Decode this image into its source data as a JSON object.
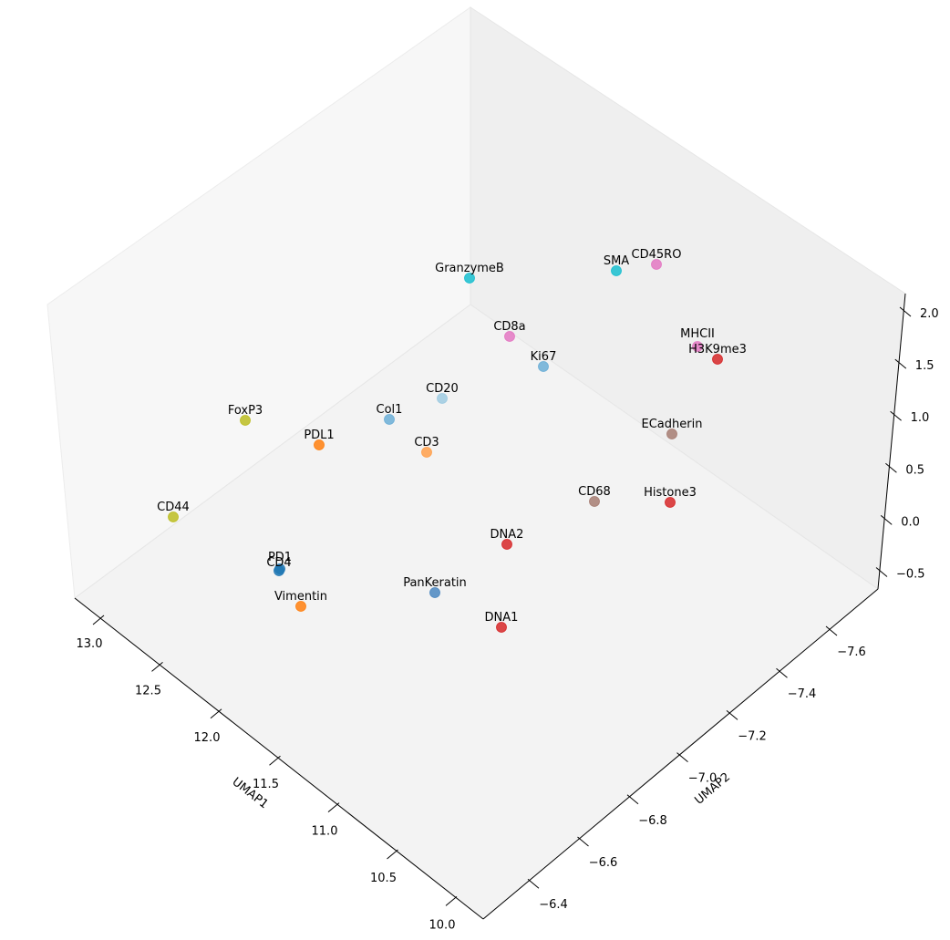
{
  "chart_data": {
    "type": "scatter",
    "projection": "3d",
    "xlabel": "UMAP1",
    "ylabel": "UMAP2",
    "zlabel": "",
    "xlim": [
      10.0,
      13.0
    ],
    "ylim": [
      -6.4,
      -7.6
    ],
    "zlim": [
      -0.5,
      2.0
    ],
    "x_ticks": [
      "13.0",
      "12.5",
      "12.0",
      "11.5",
      "11.0",
      "10.5",
      "10.0"
    ],
    "y_ticks": [
      "−7.6",
      "−7.4",
      "−7.2",
      "−7.0",
      "−6.8",
      "−6.6",
      "−6.4"
    ],
    "z_ticks": [
      "2.0",
      "1.5",
      "1.0",
      "0.5",
      "0.0",
      "−0.5"
    ],
    "grid": false,
    "points": [
      {
        "label": "GranzymeB",
        "color": "#17becf"
      },
      {
        "label": "SMA",
        "color": "#17becf"
      },
      {
        "label": "CD45RO",
        "color": "#e377c2"
      },
      {
        "label": "CD8a",
        "color": "#e377c2"
      },
      {
        "label": "MHCII",
        "color": "#e377c2"
      },
      {
        "label": "H3K9me3",
        "color": "#d62728"
      },
      {
        "label": "Ki67",
        "color": "#6baed6"
      },
      {
        "label": "CD20",
        "color": "#9ecae1"
      },
      {
        "label": "Col1",
        "color": "#6baed6"
      },
      {
        "label": "FoxP3",
        "color": "#bcbd22"
      },
      {
        "label": "PDL1",
        "color": "#ff7f0e"
      },
      {
        "label": "CD3",
        "color": "#ff9f4a"
      },
      {
        "label": "ECadherin",
        "color": "#a67c72"
      },
      {
        "label": "CD68",
        "color": "#a67c72"
      },
      {
        "label": "Histone3",
        "color": "#d62728"
      },
      {
        "label": "CD44",
        "color": "#bcbd22"
      },
      {
        "label": "DNA2",
        "color": "#d62728"
      },
      {
        "label": "PD1",
        "color": "#1f77b4"
      },
      {
        "label": "CD4",
        "color": "#1f77b4"
      },
      {
        "label": "PanKeratin",
        "color": "#4a86c0"
      },
      {
        "label": "Vimentin",
        "color": "#ff7f0e"
      },
      {
        "label": "DNA1",
        "color": "#d62728"
      }
    ]
  }
}
